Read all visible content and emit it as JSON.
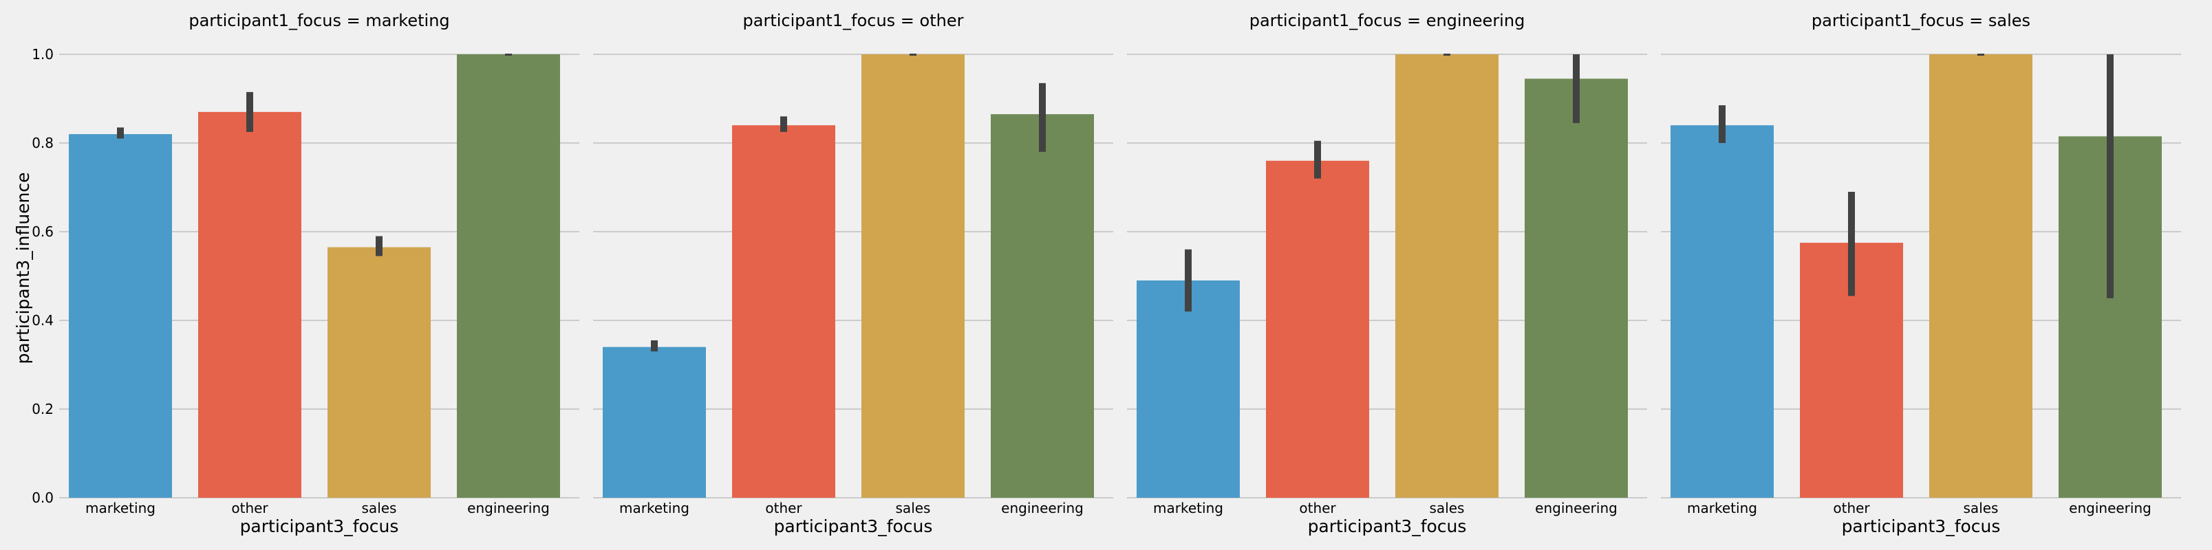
{
  "chart_data": {
    "type": "bar",
    "ylabel": "participant3_influence",
    "xlabel": "participant3_focus",
    "ylim": [
      0,
      1.0
    ],
    "yticks": [
      "0.0",
      "0.2",
      "0.4",
      "0.6",
      "0.8",
      "1.0"
    ],
    "grid": true,
    "categories": [
      "marketing",
      "other",
      "sales",
      "engineering"
    ],
    "colors": [
      "#4a9bc9",
      "#e5634a",
      "#d0a54e",
      "#6f8a57"
    ],
    "panels": [
      {
        "title": "participant1_focus = marketing",
        "values": [
          0.82,
          0.87,
          0.565,
          1.0
        ],
        "err_low": [
          0.81,
          0.825,
          0.545,
          1.0
        ],
        "err_high": [
          0.835,
          0.915,
          0.59,
          1.0
        ]
      },
      {
        "title": "participant1_focus = other",
        "values": [
          0.34,
          0.84,
          1.0,
          0.865
        ],
        "err_low": [
          0.33,
          0.825,
          1.0,
          0.78
        ],
        "err_high": [
          0.355,
          0.86,
          1.0,
          0.935
        ]
      },
      {
        "title": "participant1_focus = engineering",
        "values": [
          0.49,
          0.76,
          1.0,
          0.945
        ],
        "err_low": [
          0.42,
          0.72,
          1.0,
          0.845
        ],
        "err_high": [
          0.56,
          0.805,
          1.0,
          1.0
        ]
      },
      {
        "title": "participant1_focus = sales",
        "values": [
          0.84,
          0.575,
          1.0,
          0.815
        ],
        "err_low": [
          0.8,
          0.455,
          1.0,
          0.45
        ],
        "err_high": [
          0.885,
          0.69,
          1.0,
          1.0
        ]
      }
    ]
  }
}
